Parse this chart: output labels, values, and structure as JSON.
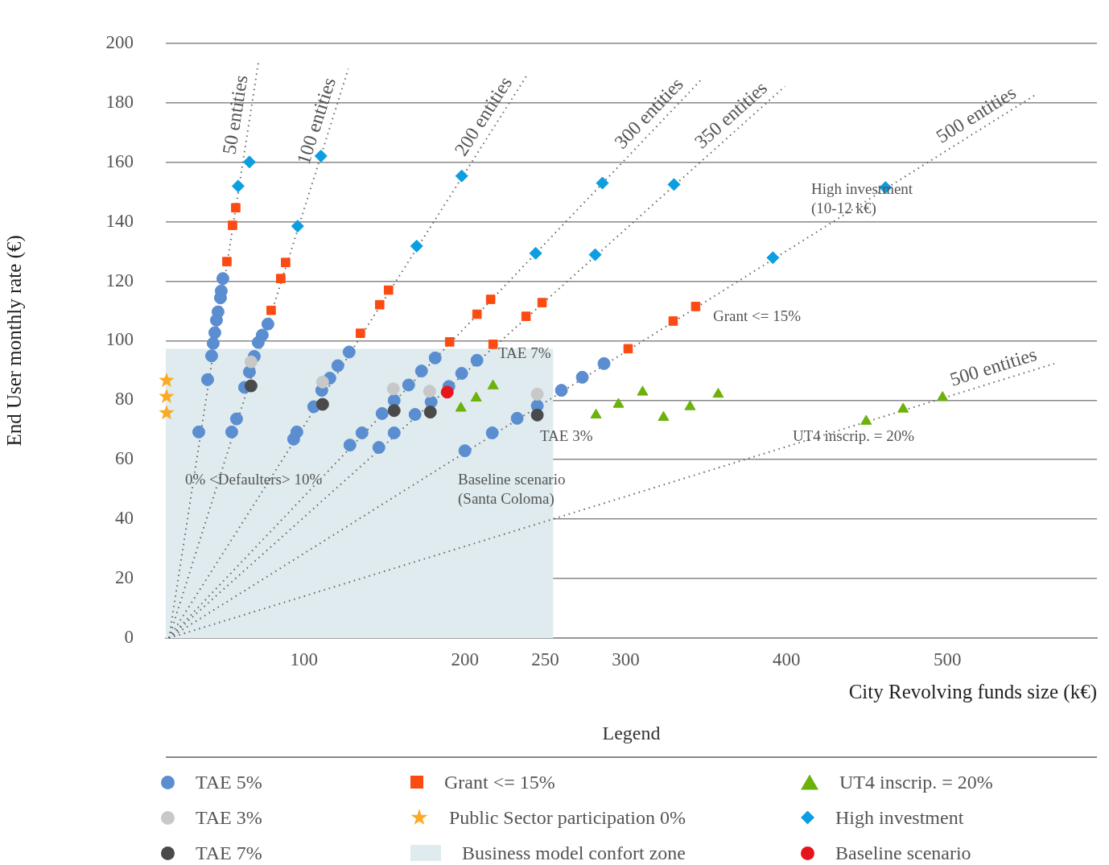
{
  "chart_data": {
    "type": "scatter",
    "xlabel": "City Revolving funds size (k€)",
    "ylabel": "End User monthly rate (€)",
    "legend_title": "Legend",
    "legend": "bottom",
    "grid": "y",
    "xlim": [
      14,
      593
    ],
    "xticks": [
      100,
      200,
      250,
      300,
      400,
      500
    ],
    "ylim": [
      0,
      200
    ],
    "yticks": [
      0,
      20,
      40,
      60,
      80,
      100,
      120,
      140,
      160,
      180,
      200
    ],
    "series": [
      {
        "name": "TAE 5%",
        "type": "scatter",
        "marker": "circle",
        "color": "#5b8ed0",
        "x": [
          34.5,
          40,
          42.5,
          43.5,
          44.5,
          45.5,
          46.5,
          48,
          48.5,
          49.5,
          55,
          58,
          63,
          66,
          69,
          71.5,
          74,
          77.5,
          93.5,
          95.5,
          106,
          111,
          116,
          121,
          128,
          128.5,
          136,
          148.5,
          156,
          165,
          173,
          181.5,
          146.5,
          156,
          169,
          179,
          190,
          198,
          207.5,
          200,
          217,
          232.5,
          245,
          260,
          273,
          286.5
        ],
        "values": [
          69.3,
          86.9,
          94.9,
          99.1,
          102.7,
          106.9,
          109.7,
          114.4,
          116.7,
          120.9,
          69.3,
          73.7,
          84.3,
          89.5,
          94.7,
          99.4,
          101.9,
          105.6,
          66.9,
          69.3,
          77.8,
          83.3,
          87.4,
          91.6,
          96.2,
          64.9,
          69,
          75.5,
          79.9,
          85.1,
          89.8,
          94.2,
          64.1,
          69,
          75.2,
          79.4,
          84.6,
          89,
          93.4,
          63,
          69,
          73.9,
          78.1,
          83.3,
          87.7,
          92.3
        ]
      },
      {
        "name": "TAE 3%",
        "type": "scatter",
        "marker": "circle",
        "color": "#c8c8c8",
        "x": [
          67,
          111.5,
          155.5,
          178,
          245
        ],
        "values": [
          92.9,
          86.1,
          83.8,
          83,
          82
        ]
      },
      {
        "name": "TAE 7%",
        "type": "scatter",
        "marker": "circle",
        "color": "#4a4a4a",
        "x": [
          67,
          111.5,
          156,
          178.5,
          245
        ],
        "values": [
          84.8,
          78.6,
          76.5,
          76,
          75
        ]
      },
      {
        "name": "Grant <= 15%",
        "type": "scatter",
        "marker": "square",
        "color": "#fb4a12",
        "x": [
          52,
          55.5,
          57.5,
          79.5,
          85.5,
          88.5,
          135,
          147,
          152.5,
          190.5,
          207.5,
          216,
          217.5,
          238,
          248,
          301.5,
          329.5,
          343.5
        ],
        "values": [
          126.6,
          138.8,
          144.7,
          110.2,
          120.9,
          126.3,
          102.5,
          112.1,
          117,
          99.6,
          108.9,
          113.9,
          98.8,
          108.2,
          112.8,
          97.3,
          106.6,
          111.5
        ]
      },
      {
        "name": "Public Sector participation 0%",
        "type": "scatter",
        "marker": "star",
        "color": "#fbaa25",
        "x": [
          14.5,
          14.5,
          14.5
        ],
        "values": [
          86.6,
          81.2,
          75.7
        ]
      },
      {
        "name": "Business model confort zone",
        "type": "area",
        "color": "#dfebee",
        "x": [
          14,
          255
        ],
        "values": [
          97.3,
          97.3
        ]
      },
      {
        "name": "UT4 inscrip. = 20%",
        "type": "scatter",
        "marker": "triangle",
        "color": "#6db10b",
        "x": [
          197.5,
          207,
          217.5,
          281.5,
          295.5,
          310.5,
          323.5,
          340,
          357.5,
          449.5,
          472.5,
          497
        ],
        "values": [
          77.3,
          80.7,
          84.8,
          75,
          78.6,
          82.7,
          74.2,
          77.8,
          82,
          72.9,
          77,
          80.9
        ]
      },
      {
        "name": "High investment",
        "type": "scatter",
        "marker": "diamond",
        "color": "#0b9ee0",
        "x": [
          59,
          66,
          96,
          110.5,
          170,
          198,
          244,
          285.5,
          281,
          330,
          391.5,
          461.5
        ],
        "values": [
          152,
          160.1,
          138.5,
          162.1,
          131.8,
          155.4,
          129.4,
          153,
          128.9,
          152.5,
          127.9,
          151.5
        ]
      },
      {
        "name": "Baseline scenario",
        "type": "scatter",
        "marker": "circle",
        "color": "#e8141b",
        "x": [
          189
        ],
        "values": [
          82.7
        ]
      },
      {
        "type": "line",
        "line_style": "dotted",
        "color": "#666666",
        "x": [
          16,
          71.5
        ],
        "values": [
          0,
          193.3
        ]
      },
      {
        "type": "line",
        "line_style": "dotted",
        "color": "#666666",
        "x": [
          16,
          127.5
        ],
        "values": [
          0,
          191.4
        ]
      },
      {
        "type": "line",
        "line_style": "dotted",
        "color": "#666666",
        "x": [
          16,
          239
        ],
        "values": [
          0,
          189.6
        ]
      },
      {
        "type": "line",
        "line_style": "dotted",
        "color": "#666666",
        "x": [
          16,
          346.5
        ],
        "values": [
          0,
          187.5
        ]
      },
      {
        "type": "line",
        "line_style": "dotted",
        "color": "#666666",
        "x": [
          16,
          399
        ],
        "values": [
          0,
          185.5
        ]
      },
      {
        "type": "line",
        "line_style": "dotted",
        "color": "#666666",
        "x": [
          16,
          554
        ],
        "values": [
          0,
          182.4
        ]
      },
      {
        "type": "line",
        "line_style": "dotted",
        "color": "#666666",
        "x": [
          16,
          566.5
        ],
        "values": [
          0,
          92.3
        ]
      }
    ],
    "annotations": [
      {
        "text": "50 entities",
        "x": 71.5,
        "y": 193.3
      },
      {
        "text": "100 entities",
        "x": 127.5,
        "y": 191.4
      },
      {
        "text": "200 entities",
        "x": 239,
        "y": 189.6
      },
      {
        "text": "300 entities",
        "x": 346.5,
        "y": 187.5
      },
      {
        "text": "350 entities",
        "x": 399,
        "y": 185.5
      },
      {
        "text": "500 entities",
        "x": 554,
        "y": 182.4
      },
      {
        "text": "500 entities",
        "x": 566.5,
        "y": 92.3
      },
      "High investment  (10-12 k€)",
      "Grant <= 15%",
      "TAE 7%",
      "TAE 3%",
      "UT4 inscrip. = 20%",
      "0% <Defaulters> 10%",
      "Baseline scenario (Santa Coloma)"
    ]
  }
}
